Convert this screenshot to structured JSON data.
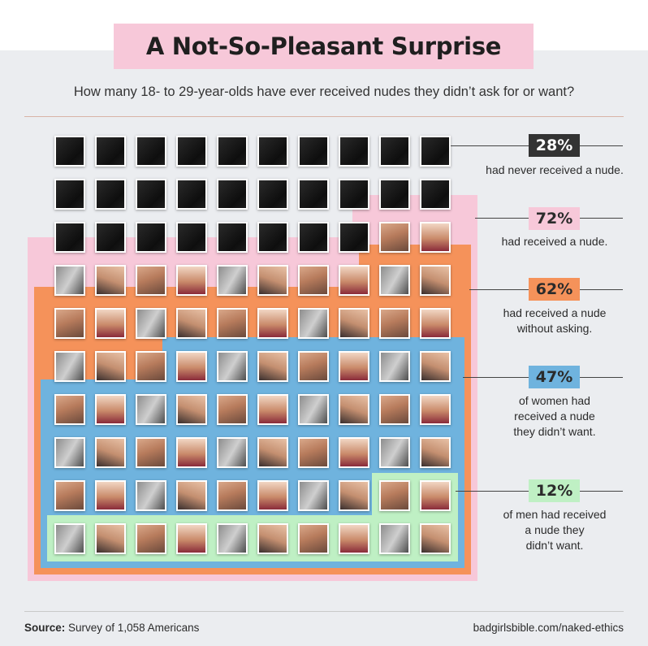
{
  "title": "A Not-So-Pleasant Surprise",
  "subtitle": "How many 18- to 29-year-olds have ever received nudes they didn’t ask for or want?",
  "chart_data": {
    "type": "unit-grid",
    "total_units": 100,
    "grid": {
      "columns": 10,
      "rows": 10
    },
    "blank_units": 28,
    "series": [
      {
        "value": 28,
        "label_pct": "28%",
        "caption": "had never received a nude.",
        "color": "#333333"
      },
      {
        "value": 72,
        "label_pct": "72%",
        "caption": "had received a nude.",
        "color": "#f7c8d9"
      },
      {
        "value": 62,
        "label_pct": "62%",
        "caption": "had received a nude without asking.",
        "color": "#f5925a"
      },
      {
        "value": 47,
        "label_pct": "47%",
        "caption": "of women had received a nude they didn’t want.",
        "color": "#6fb3de"
      },
      {
        "value": 12,
        "label_pct": "12%",
        "caption": "of men had received a nude they didn’t want.",
        "color": "#bff0c4"
      }
    ]
  },
  "legend": [
    {
      "pct": "28%",
      "lines": [
        "had never received a nude."
      ],
      "bg": "#333333",
      "fg": "#ffffff"
    },
    {
      "pct": "72%",
      "lines": [
        "had received a nude."
      ],
      "bg": "#f7c8d9",
      "fg": "#2b2b2b"
    },
    {
      "pct": "62%",
      "lines": [
        "had received a nude",
        "without asking."
      ],
      "bg": "#f5925a",
      "fg": "#2b2b2b"
    },
    {
      "pct": "47%",
      "lines": [
        "of women had",
        "received a nude",
        "they didn’t want."
      ],
      "bg": "#6fb3de",
      "fg": "#2b2b2b"
    },
    {
      "pct": "12%",
      "lines": [
        "of men had received",
        "a nude they",
        "didn’t want."
      ],
      "bg": "#bff0c4",
      "fg": "#2b2b2b"
    }
  ],
  "footer": {
    "source_label": "Source:",
    "source_text": "Survey of 1,058 Americans",
    "url": "badgirlsbible.com/naked-ethics"
  }
}
